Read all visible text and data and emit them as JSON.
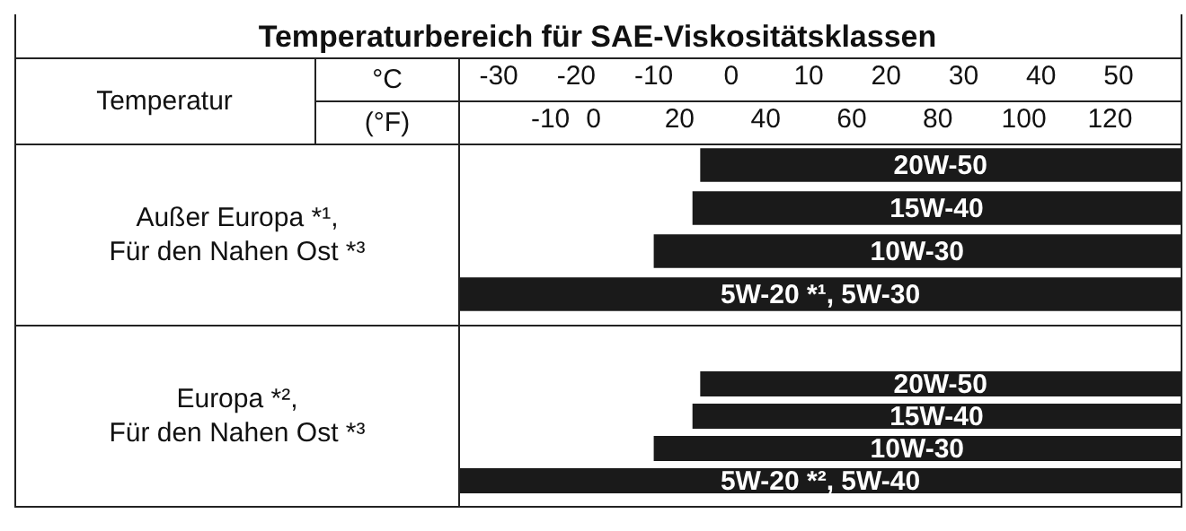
{
  "chart_data": [
    {
      "type": "bar",
      "orientation": "horizontal",
      "title": "Temperaturbereich für SAE-Viskositätsklassen",
      "annotations": [
        "Temperatur"
      ],
      "xlabel": "°C",
      "x2label": "(°F)",
      "ylabel": "Außer Europa *¹,\nFür den Nahen Ost *³",
      "categories": [
        "20W-50",
        "15W-40",
        "10W-30",
        "5W-20 *¹, 5W-30"
      ],
      "base": [
        -4,
        -5,
        -10,
        -35
      ],
      "values": [
        62,
        63,
        68,
        93
      ],
      "color": "#1a1a1a",
      "xlim": [
        -35,
        58
      ],
      "xticks": [
        -30,
        -20,
        -10,
        0,
        10,
        20,
        30,
        40,
        50
      ],
      "x2lim": [
        -31,
        136.4
      ],
      "x2ticks": [
        -10,
        0,
        20,
        40,
        60,
        80,
        100,
        120
      ],
      "tick_labels": "x"
    },
    {
      "type": "bar",
      "orientation": "horizontal",
      "ylabel": "Europa *²,\nFür den Nahen Ost *³",
      "categories": [
        "20W-50",
        "15W-40",
        "10W-30",
        "5W-20 *², 5W-40"
      ],
      "base": [
        -4,
        -5,
        -10,
        -35
      ],
      "values": [
        62,
        63,
        68,
        93
      ],
      "color": "#1a1a1a",
      "xlim": [
        -35,
        58
      ],
      "tick_labels": false
    }
  ]
}
